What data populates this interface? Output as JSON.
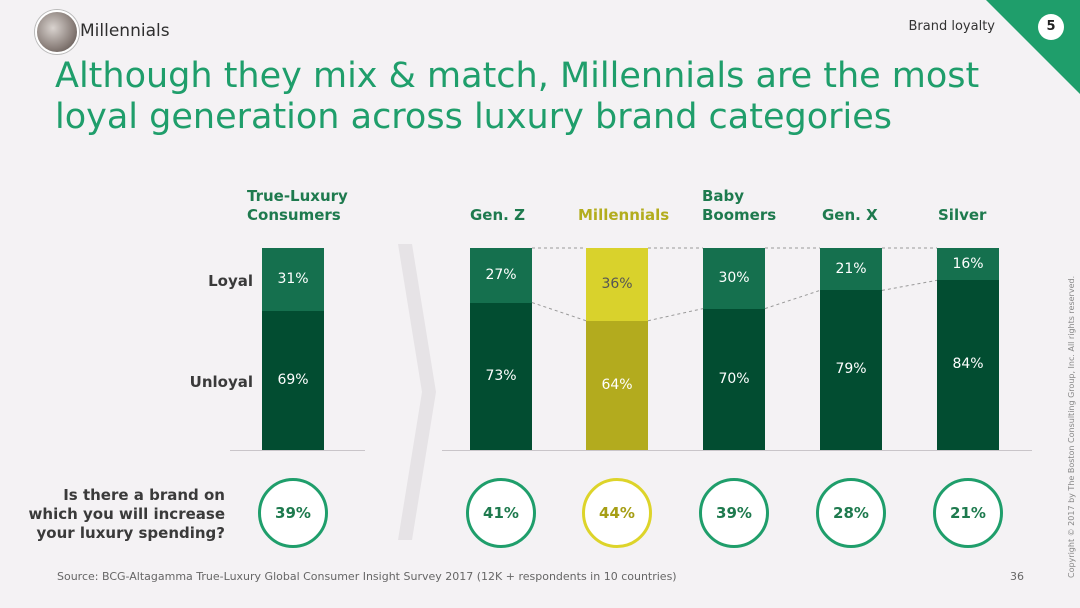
{
  "header": {
    "section": "Millennials",
    "topic": "Brand loyalty",
    "badge": "5",
    "title": "Although they mix & match, Millennials are the most loyal generation across luxury brand categories"
  },
  "row_labels": {
    "loyal": "Loyal",
    "unloyal": "Unloyal"
  },
  "question": "Is there a brand on which you will increase your luxury spending?",
  "footer": {
    "source": "Source: BCG-Altagamma True-Luxury Global Consumer Insight Survey 2017 (12K + respondents in 10 countries)",
    "page": "36",
    "copyright": "Copyright © 2017 by The Boston Consulting Group, Inc. All rights reserved."
  },
  "colors": {
    "loyal": "#15704e",
    "unloyal": "#024d31",
    "millennials_loyal": "#d9d22c",
    "millennials_unloyal": "#b3ab1e",
    "accent": "#1f9e6b"
  },
  "chart_data": {
    "type": "bar",
    "stacked": true,
    "categories": [
      "True-Luxury Consumers",
      "Gen. Z",
      "Millennials",
      "Baby Boomers",
      "Gen. X",
      "Silver"
    ],
    "series": [
      {
        "name": "Unloyal",
        "values": [
          69,
          73,
          64,
          70,
          79,
          84
        ]
      },
      {
        "name": "Loyal",
        "values": [
          31,
          27,
          36,
          30,
          21,
          16
        ]
      }
    ],
    "increase_spending": [
      39,
      41,
      44,
      39,
      28,
      21
    ],
    "display": {
      "unloyal": [
        "69%",
        "73%",
        "64%",
        "70%",
        "79%",
        "84%"
      ],
      "loyal": [
        "31%",
        "27%",
        "36%",
        "30%",
        "21%",
        "16%"
      ],
      "increase": [
        "39%",
        "41%",
        "44%",
        "39%",
        "28%",
        "21%"
      ]
    },
    "ylim": [
      0,
      100
    ]
  }
}
